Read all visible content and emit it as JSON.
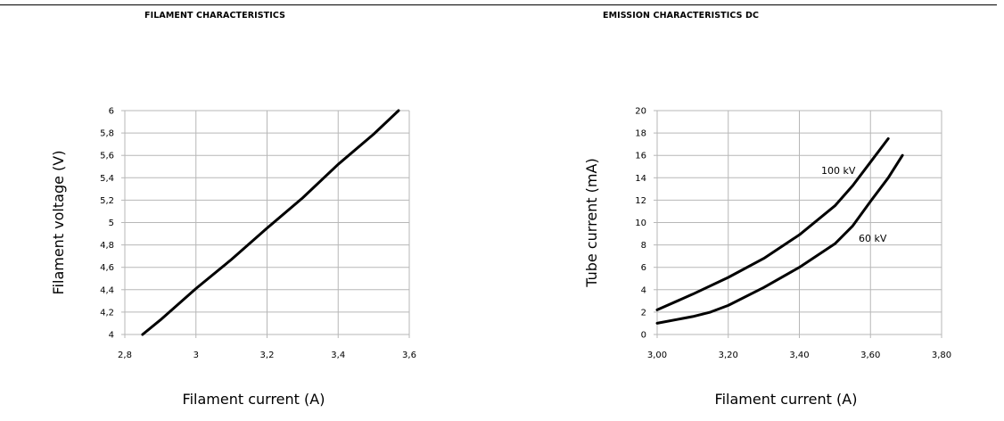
{
  "page": {
    "left_title": "FILAMENT CHARACTERISTICS",
    "right_title": "EMISSION CHARACTERISTICS DC"
  },
  "chart_data": [
    {
      "type": "line",
      "title": "FILAMENT CHARACTERISTICS",
      "xlabel": "Filament current (A)",
      "ylabel": "Filament voltage (V)",
      "xlim": [
        2.8,
        3.6
      ],
      "ylim": [
        4,
        6
      ],
      "xticks": [
        "2,8",
        "3",
        "3,2",
        "3,4",
        "3,6"
      ],
      "yticks": [
        "4",
        "4,2",
        "4,4",
        "4,6",
        "4,8",
        "5",
        "5,2",
        "5,4",
        "5,6",
        "5,8",
        "6"
      ],
      "grid": true,
      "series": [
        {
          "x": [
            2.85,
            2.9,
            3.0,
            3.1,
            3.2,
            3.3,
            3.4,
            3.5,
            3.57
          ],
          "y": [
            4.0,
            4.13,
            4.41,
            4.67,
            4.95,
            5.22,
            5.52,
            5.79,
            6.0
          ]
        }
      ]
    },
    {
      "type": "line",
      "title": "EMISSION CHARACTERISTICS DC",
      "xlabel": "Filament current (A)",
      "ylabel": "Tube current (mA)",
      "xlim": [
        3.0,
        3.8
      ],
      "ylim": [
        0,
        20
      ],
      "xticks": [
        "3,00",
        "3,20",
        "3,40",
        "3,60",
        "3,80"
      ],
      "yticks": [
        "0",
        "2",
        "4",
        "6",
        "8",
        "10",
        "12",
        "14",
        "16",
        "18",
        "20"
      ],
      "grid": true,
      "series": [
        {
          "name": "100 kV",
          "x": [
            3.0,
            3.1,
            3.2,
            3.3,
            3.4,
            3.5,
            3.55,
            3.6,
            3.65
          ],
          "y": [
            2.2,
            3.6,
            5.1,
            6.8,
            8.9,
            11.5,
            13.3,
            15.4,
            17.5
          ]
        },
        {
          "name": "60 kV",
          "x": [
            3.0,
            3.1,
            3.15,
            3.2,
            3.3,
            3.4,
            3.5,
            3.55,
            3.6,
            3.65,
            3.69
          ],
          "y": [
            1.0,
            1.6,
            2.0,
            2.6,
            4.2,
            6.0,
            8.1,
            9.7,
            11.9,
            14.0,
            16.0
          ]
        }
      ]
    }
  ]
}
